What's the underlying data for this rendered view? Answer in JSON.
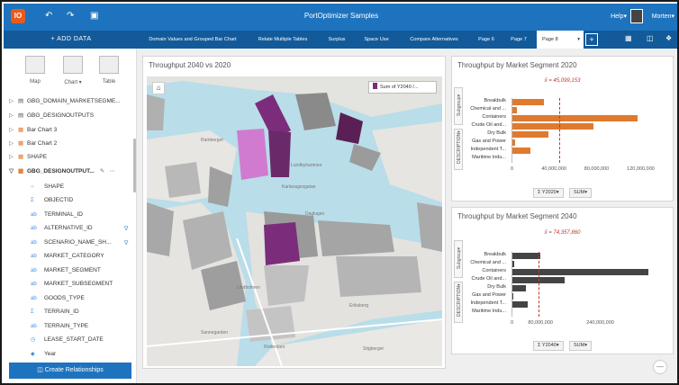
{
  "app": {
    "logo_text": "IO",
    "title": "PortOptimizer Samples",
    "help_label": "Help▾",
    "user_label": "Morten▾",
    "undo_icon": "undo-icon",
    "redo_icon": "redo-icon",
    "save_icon": "save-icon"
  },
  "add_data_label": "+ ADD DATA",
  "tabs": [
    {
      "label": "Domain Values and Grouped Bar Chart"
    },
    {
      "label": "Relate Multiple Tables"
    },
    {
      "label": "Surplus"
    },
    {
      "label": "Space Use"
    },
    {
      "label": "Compare Alternatives"
    },
    {
      "label": "Page 6"
    },
    {
      "label": "Page 7"
    },
    {
      "label": "Page 8"
    }
  ],
  "viz_buttons": [
    {
      "label": "Map"
    },
    {
      "label": "Chart ▾"
    },
    {
      "label": "Table"
    }
  ],
  "datasets": [
    {
      "label": "GBG_DOMAIN_MARKETSEGME...",
      "icon": "table-icon"
    },
    {
      "label": "GBG_DESIGNOUTPUTS",
      "icon": "table-icon"
    },
    {
      "label": "Bar Chart 3",
      "icon": "layer-icon"
    },
    {
      "label": "Bar Chart 2",
      "icon": "layer-icon"
    },
    {
      "label": "SHAPE",
      "icon": "layer-icon"
    },
    {
      "label": "GBG_DESIGNOUTPUT...",
      "icon": "layer-icon"
    }
  ],
  "fields": [
    {
      "label": "SHAPE",
      "icon": "○"
    },
    {
      "label": "OBJECTID",
      "icon": "Σ"
    },
    {
      "label": "TERMINAL_ID",
      "icon": "ab"
    },
    {
      "label": "ALTERNATIVE_ID",
      "icon": "ab",
      "filter": "∇"
    },
    {
      "label": "SCENARIO_NAME_SH...",
      "icon": "ab",
      "filter": "∇"
    },
    {
      "label": "MARKET_CATEGORY",
      "icon": "ab"
    },
    {
      "label": "MARKET_SEGMENT",
      "icon": "ab"
    },
    {
      "label": "MARKET_SUBSEGMENT",
      "icon": "ab"
    },
    {
      "label": "GOODS_TYPE",
      "icon": "ab"
    },
    {
      "label": "TERRAIN_ID",
      "icon": "Σ"
    },
    {
      "label": "TERRAIN_TYPE",
      "icon": "ab"
    },
    {
      "label": "LEASE_START_DATE",
      "icon": "◷"
    },
    {
      "label": "Year",
      "icon": "◆"
    }
  ],
  "create_relationships_label": "Create Relationships",
  "map_card": {
    "title": "Throughput 2040 vs 2020",
    "legend_label": "Sum of Y2040 /...",
    "home_icon": "⌂",
    "labels": [
      "Dagkajen",
      "Ramberget",
      "Lindholmen",
      "Eriksberg",
      "Rotterdam",
      "Sannegarden",
      "Stigberget",
      "Karlavagnsgatan",
      "Lundbyhamnen"
    ]
  },
  "chart_data": [
    {
      "type": "bar",
      "title": "Throughput by Market Segment 2020",
      "stat_label": "x̄ = 45,099,153",
      "categories": [
        "Breakbulk",
        "Chemical and ...",
        "Containers",
        "Crude Oil and...",
        "Dry Bulk",
        "Gas and Power",
        "Independent T...",
        "Maritime Indu..."
      ],
      "values": [
        30000000,
        5000000,
        118000000,
        77000000,
        35000000,
        3000000,
        18000000,
        0
      ],
      "xlim": [
        0,
        130000000
      ],
      "ticks": [
        "0",
        "40,000,000",
        "80,000,000",
        "120,000,000"
      ],
      "tick_values": [
        0,
        40000000,
        80000000,
        120000000
      ],
      "mean": 45099153,
      "color": "#e07a2e",
      "y_control": "Σ Y2020▾",
      "agg_control": "SUM▾"
    },
    {
      "type": "bar",
      "title": "Throughput by Market Segment 2040",
      "stat_label": "x̄ = 74,357,860",
      "categories": [
        "Breakbulk",
        "Chemical and ...",
        "Containers",
        "Crude Oil and...",
        "Dry Bulk",
        "Gas and Power",
        "Independent T...",
        "Maritime Indu..."
      ],
      "values": [
        78000000,
        8000000,
        374000000,
        145000000,
        40000000,
        4000000,
        44000000,
        0
      ],
      "xlim": [
        0,
        380000000
      ],
      "ticks": [
        "0",
        "80,000,000",
        "240,000,000"
      ],
      "tick_values": [
        0,
        80000000,
        240000000
      ],
      "mean": 74357860,
      "color": "#444444",
      "y_control": "Σ Y2040▾",
      "agg_control": "SUM▾"
    }
  ],
  "side_tabs": [
    "Subgroup▾",
    "DESCRIPTION▾"
  ]
}
